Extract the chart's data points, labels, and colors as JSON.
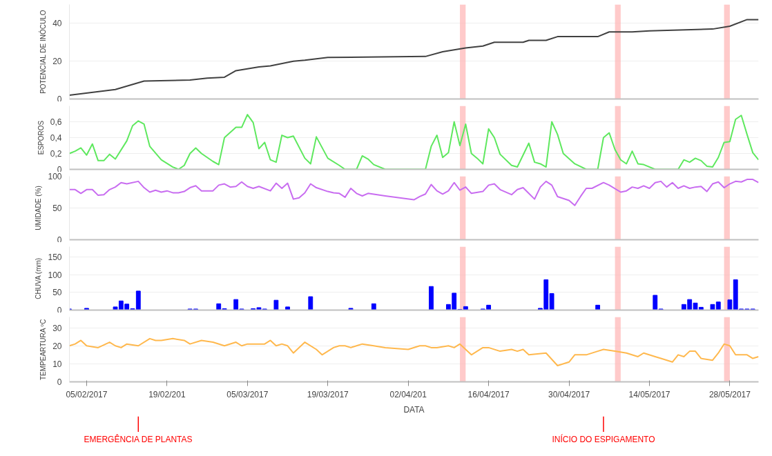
{
  "chart_data": [
    {
      "type": "line",
      "ylabel": "POTENCIAL DE INÓCULO",
      "grid": "y",
      "tick_labels": "y",
      "xlim": [
        "2017-02-02",
        "2017-06-02"
      ],
      "ylim": [
        0,
        50
      ],
      "yticks": [
        0,
        20,
        40
      ],
      "x": [
        "2017-02-02",
        "2017-02-10",
        "2017-02-15",
        "2017-02-23",
        "2017-02-26",
        "2017-03-01",
        "2017-03-03",
        "2017-03-07",
        "2017-03-09",
        "2017-03-13",
        "2017-03-15",
        "2017-03-19",
        "2017-04-05",
        "2017-04-08",
        "2017-04-12",
        "2017-04-15",
        "2017-04-17",
        "2017-04-22",
        "2017-04-23",
        "2017-04-26",
        "2017-04-28",
        "2017-05-05",
        "2017-05-07",
        "2017-05-11",
        "2017-05-14",
        "2017-05-25",
        "2017-05-28",
        "2017-05-31",
        "2017-06-02"
      ],
      "series": [
        {
          "color": "#404040",
          "values": [
            2,
            5,
            9.5,
            10,
            11,
            11.5,
            15,
            17,
            17.5,
            20,
            20.5,
            22,
            22.5,
            25,
            27,
            28,
            30,
            30,
            31,
            31,
            33,
            33,
            35.5,
            35.5,
            36,
            37,
            38.5,
            42,
            42
          ]
        }
      ],
      "bands": [
        {
          "axis": "x",
          "from": "2017-04-11",
          "to": "2017-04-12",
          "color": "#ffb3b3"
        },
        {
          "axis": "x",
          "from": "2017-05-08",
          "to": "2017-05-09",
          "color": "#ffb3b3"
        },
        {
          "axis": "x",
          "from": "2017-05-27",
          "to": "2017-05-28",
          "color": "#ffb3b3"
        }
      ]
    },
    {
      "type": "line",
      "ylabel": "ESPOROS",
      "grid": "y",
      "tick_labels": "y",
      "xlim": [
        "2017-02-02",
        "2017-06-02"
      ],
      "ylim": [
        0,
        0.8
      ],
      "yticks": [
        0,
        {
          "value": 0.2,
          "label": "0,2"
        },
        {
          "value": 0.4,
          "label": "0,4"
        },
        {
          "value": 0.6,
          "label": "0,6"
        }
      ],
      "x": [
        "2017-02-02",
        "2017-02-03",
        "2017-02-04",
        "2017-02-05",
        "2017-02-06",
        "2017-02-07",
        "2017-02-08",
        "2017-02-09",
        "2017-02-10",
        "2017-02-12",
        "2017-02-13",
        "2017-02-14",
        "2017-02-15",
        "2017-02-16",
        "2017-02-18",
        "2017-02-20",
        "2017-02-21",
        "2017-02-22",
        "2017-02-23",
        "2017-02-24",
        "2017-02-25",
        "2017-02-27",
        "2017-02-28",
        "2017-03-01",
        "2017-03-03",
        "2017-03-04",
        "2017-03-05",
        "2017-03-06",
        "2017-03-07",
        "2017-03-08",
        "2017-03-09",
        "2017-03-10",
        "2017-03-11",
        "2017-03-12",
        "2017-03-13",
        "2017-03-15",
        "2017-03-16",
        "2017-03-17",
        "2017-03-19",
        "2017-03-21",
        "2017-03-22",
        "2017-03-24",
        "2017-03-25",
        "2017-03-26",
        "2017-03-27",
        "2017-03-29",
        "2017-04-05",
        "2017-04-06",
        "2017-04-07",
        "2017-04-08",
        "2017-04-09",
        "2017-04-10",
        "2017-04-11",
        "2017-04-12",
        "2017-04-13",
        "2017-04-14",
        "2017-04-15",
        "2017-04-16",
        "2017-04-17",
        "2017-04-18",
        "2017-04-20",
        "2017-04-21",
        "2017-04-23",
        "2017-04-24",
        "2017-04-25",
        "2017-04-26",
        "2017-04-27",
        "2017-04-28",
        "2017-04-29",
        "2017-05-01",
        "2017-05-03",
        "2017-05-05",
        "2017-05-06",
        "2017-05-07",
        "2017-05-08",
        "2017-05-09",
        "2017-05-10",
        "2017-05-11",
        "2017-05-12",
        "2017-05-13",
        "2017-05-15",
        "2017-05-19",
        "2017-05-20",
        "2017-05-21",
        "2017-05-22",
        "2017-05-23",
        "2017-05-24",
        "2017-05-25",
        "2017-05-26",
        "2017-05-27",
        "2017-05-28",
        "2017-05-29",
        "2017-05-30",
        "2017-05-31",
        "2017-06-01",
        "2017-06-02"
      ],
      "series": [
        {
          "color": "#5ee85e",
          "values": [
            0.2,
            0.23,
            0.27,
            0.18,
            0.32,
            0.11,
            0.11,
            0.19,
            0.13,
            0.36,
            0.55,
            0.61,
            0.57,
            0.29,
            0.12,
            0.03,
            0,
            0.05,
            0.2,
            0.27,
            0.2,
            0.1,
            0.06,
            0.4,
            0.53,
            0.53,
            0.69,
            0.59,
            0.26,
            0.34,
            0.12,
            0.09,
            0.43,
            0.4,
            0.42,
            0.14,
            0.07,
            0.41,
            0.14,
            0.05,
            0,
            0,
            0.17,
            0.13,
            0.06,
            0,
            0,
            0.29,
            0.43,
            0.15,
            0.21,
            0.6,
            0.3,
            0.57,
            0.2,
            0.14,
            0.07,
            0.51,
            0.4,
            0.19,
            0.05,
            0.03,
            0.33,
            0.09,
            0.07,
            0.03,
            0.6,
            0.44,
            0.2,
            0.07,
            0,
            0,
            0.4,
            0.46,
            0.25,
            0.12,
            0.07,
            0.23,
            0.07,
            0.06,
            0,
            0,
            0.12,
            0.09,
            0.14,
            0.11,
            0.04,
            0.03,
            0.15,
            0.34,
            0.35,
            0.63,
            0.68,
            0.44,
            0.21,
            0.12
          ]
        }
      ],
      "bands": [
        {
          "axis": "x",
          "from": "2017-04-11",
          "to": "2017-04-12",
          "color": "#ffb3b3"
        },
        {
          "axis": "x",
          "from": "2017-05-08",
          "to": "2017-05-09",
          "color": "#ffb3b3"
        },
        {
          "axis": "x",
          "from": "2017-05-27",
          "to": "2017-05-28",
          "color": "#ffb3b3"
        }
      ]
    },
    {
      "type": "line",
      "ylabel": "UMIDADE (%)",
      "grid": "y",
      "tick_labels": "y",
      "xlim": [
        "2017-02-02",
        "2017-06-02"
      ],
      "ylim": [
        0,
        100
      ],
      "yticks": [
        0,
        50,
        100
      ],
      "x": [
        "2017-02-02",
        "2017-02-03",
        "2017-02-04",
        "2017-02-05",
        "2017-02-06",
        "2017-02-07",
        "2017-02-08",
        "2017-02-09",
        "2017-02-10",
        "2017-02-11",
        "2017-02-12",
        "2017-02-14",
        "2017-02-15",
        "2017-02-16",
        "2017-02-17",
        "2017-02-18",
        "2017-02-19",
        "2017-02-20",
        "2017-02-21",
        "2017-02-22",
        "2017-02-23",
        "2017-02-24",
        "2017-02-25",
        "2017-02-27",
        "2017-02-28",
        "2017-03-01",
        "2017-03-02",
        "2017-03-03",
        "2017-03-04",
        "2017-03-05",
        "2017-03-06",
        "2017-03-07",
        "2017-03-09",
        "2017-03-10",
        "2017-03-11",
        "2017-03-12",
        "2017-03-13",
        "2017-03-14",
        "2017-03-15",
        "2017-03-16",
        "2017-03-17",
        "2017-03-19",
        "2017-03-20",
        "2017-03-21",
        "2017-03-22",
        "2017-03-23",
        "2017-03-24",
        "2017-03-25",
        "2017-03-26",
        "2017-03-29",
        "2017-04-03",
        "2017-04-04",
        "2017-04-05",
        "2017-04-06",
        "2017-04-07",
        "2017-04-08",
        "2017-04-09",
        "2017-04-10",
        "2017-04-11",
        "2017-04-12",
        "2017-04-13",
        "2017-04-15",
        "2017-04-16",
        "2017-04-17",
        "2017-04-18",
        "2017-04-20",
        "2017-04-21",
        "2017-04-22",
        "2017-04-24",
        "2017-04-25",
        "2017-04-26",
        "2017-04-27",
        "2017-04-28",
        "2017-04-30",
        "2017-05-01",
        "2017-05-02",
        "2017-05-03",
        "2017-05-04",
        "2017-05-06",
        "2017-05-07",
        "2017-05-09",
        "2017-05-10",
        "2017-05-11",
        "2017-05-12",
        "2017-05-13",
        "2017-05-14",
        "2017-05-15",
        "2017-05-16",
        "2017-05-17",
        "2017-05-18",
        "2017-05-19",
        "2017-05-20",
        "2017-05-21",
        "2017-05-22",
        "2017-05-23",
        "2017-05-24",
        "2017-05-25",
        "2017-05-26",
        "2017-05-27",
        "2017-05-28",
        "2017-05-29",
        "2017-05-30",
        "2017-05-31",
        "2017-06-01",
        "2017-06-02"
      ],
      "series": [
        {
          "color": "#c86cf0",
          "values": [
            79,
            79,
            73,
            79,
            79,
            70,
            71,
            79,
            83,
            90,
            88,
            92,
            82,
            75,
            78,
            75,
            77,
            74,
            74,
            76,
            82,
            85,
            77,
            77,
            86,
            88,
            83,
            84,
            91,
            84,
            81,
            84,
            77,
            89,
            81,
            89,
            64,
            66,
            74,
            88,
            82,
            76,
            74,
            73,
            67,
            81,
            73,
            69,
            73,
            69,
            63,
            68,
            72,
            87,
            77,
            72,
            77,
            90,
            78,
            83,
            73,
            76,
            86,
            88,
            79,
            71,
            79,
            82,
            64,
            83,
            92,
            86,
            68,
            62,
            54,
            68,
            81,
            81,
            90,
            86,
            75,
            77,
            83,
            81,
            85,
            81,
            90,
            92,
            83,
            90,
            81,
            85,
            81,
            83,
            84,
            76,
            88,
            91,
            82,
            88,
            92,
            91,
            95,
            95,
            90
          ]
        }
      ],
      "bands": [
        {
          "axis": "x",
          "from": "2017-04-11",
          "to": "2017-04-12",
          "color": "#ffb3b3"
        },
        {
          "axis": "x",
          "from": "2017-05-08",
          "to": "2017-05-09",
          "color": "#ffb3b3"
        },
        {
          "axis": "x",
          "from": "2017-05-27",
          "to": "2017-05-28",
          "color": "#ffb3b3"
        }
      ]
    },
    {
      "type": "bar",
      "ylabel": "CHUVA (mm)",
      "grid": "y",
      "tick_labels": "y",
      "xlim": [
        "2017-02-02",
        "2017-06-02"
      ],
      "ylim": [
        0,
        180
      ],
      "yticks": [
        0,
        50,
        100,
        150
      ],
      "x": [
        "2017-02-02",
        "2017-02-05",
        "2017-02-10",
        "2017-02-11",
        "2017-02-12",
        "2017-02-13",
        "2017-02-14",
        "2017-02-23",
        "2017-02-24",
        "2017-02-28",
        "2017-03-01",
        "2017-03-03",
        "2017-03-04",
        "2017-03-06",
        "2017-03-07",
        "2017-03-08",
        "2017-03-10",
        "2017-03-12",
        "2017-03-16",
        "2017-03-23",
        "2017-03-27",
        "2017-04-06",
        "2017-04-09",
        "2017-04-10",
        "2017-04-11",
        "2017-04-12",
        "2017-04-15",
        "2017-04-16",
        "2017-04-25",
        "2017-04-26",
        "2017-04-27",
        "2017-05-05",
        "2017-05-15",
        "2017-05-16",
        "2017-05-20",
        "2017-05-21",
        "2017-05-22",
        "2017-05-23",
        "2017-05-25",
        "2017-05-26",
        "2017-05-28",
        "2017-05-29",
        "2017-05-30",
        "2017-05-31",
        "2017-06-01"
      ],
      "series": [
        {
          "color": "#0000ff",
          "values": [
            3,
            5,
            9,
            26,
            17,
            4,
            54,
            3,
            3,
            18,
            4,
            30,
            3,
            4,
            7,
            3,
            28,
            9,
            38,
            5,
            18,
            67,
            16,
            48,
            2,
            10,
            3,
            14,
            5,
            86,
            47,
            14,
            42,
            3,
            16,
            30,
            20,
            8,
            16,
            23,
            29,
            86,
            3,
            3,
            3
          ]
        }
      ],
      "bands": [
        {
          "axis": "x",
          "from": "2017-04-11",
          "to": "2017-04-12",
          "color": "#ffb3b3"
        },
        {
          "axis": "x",
          "from": "2017-05-08",
          "to": "2017-05-09",
          "color": "#ffb3b3"
        },
        {
          "axis": "x",
          "from": "2017-05-27",
          "to": "2017-05-28",
          "color": "#ffb3b3"
        }
      ]
    },
    {
      "type": "line",
      "ylabel": "TEMPEARTURA ºC",
      "xlabel": "DATA",
      "grid": "y",
      "xlim": [
        "2017-02-02",
        "2017-06-02"
      ],
      "ylim": [
        0,
        36
      ],
      "yticks": [
        0,
        10,
        20,
        30
      ],
      "xticks": [
        {
          "value": "2017-02-05",
          "label": "05/02/2017"
        },
        {
          "value": "2017-02-19",
          "label": "19/02/201"
        },
        {
          "value": "2017-03-05",
          "label": "05/03/2017"
        },
        {
          "value": "2017-03-19",
          "label": "19/03/2017"
        },
        {
          "value": "2017-04-02",
          "label": "02/04/201"
        },
        {
          "value": "2017-04-16",
          "label": "16/04/2017"
        },
        {
          "value": "2017-04-30",
          "label": "30/04/2017"
        },
        {
          "value": "2017-05-14",
          "label": "14/05/2017"
        },
        {
          "value": "2017-05-28",
          "label": "28/05/2017"
        }
      ],
      "x": [
        "2017-02-02",
        "2017-02-03",
        "2017-02-04",
        "2017-02-05",
        "2017-02-07",
        "2017-02-09",
        "2017-02-10",
        "2017-02-11",
        "2017-02-12",
        "2017-02-14",
        "2017-02-16",
        "2017-02-17",
        "2017-02-18",
        "2017-02-20",
        "2017-02-22",
        "2017-02-23",
        "2017-02-25",
        "2017-02-27",
        "2017-03-01",
        "2017-03-03",
        "2017-03-04",
        "2017-03-05",
        "2017-03-08",
        "2017-03-09",
        "2017-03-10",
        "2017-03-11",
        "2017-03-12",
        "2017-03-13",
        "2017-03-15",
        "2017-03-17",
        "2017-03-18",
        "2017-03-20",
        "2017-03-21",
        "2017-03-22",
        "2017-03-23",
        "2017-03-24",
        "2017-03-25",
        "2017-03-27",
        "2017-03-29",
        "2017-04-02",
        "2017-04-04",
        "2017-04-05",
        "2017-04-06",
        "2017-04-07",
        "2017-04-09",
        "2017-04-10",
        "2017-04-11",
        "2017-04-13",
        "2017-04-15",
        "2017-04-16",
        "2017-04-18",
        "2017-04-20",
        "2017-04-21",
        "2017-04-22",
        "2017-04-23",
        "2017-04-26",
        "2017-04-28",
        "2017-04-30",
        "2017-05-01",
        "2017-05-03",
        "2017-05-05",
        "2017-05-06",
        "2017-05-08",
        "2017-05-10",
        "2017-05-12",
        "2017-05-13",
        "2017-05-15",
        "2017-05-16",
        "2017-05-18",
        "2017-05-19",
        "2017-05-20",
        "2017-05-21",
        "2017-05-22",
        "2017-05-23",
        "2017-05-25",
        "2017-05-26",
        "2017-05-27",
        "2017-05-28",
        "2017-05-29",
        "2017-05-30",
        "2017-05-31",
        "2017-06-01",
        "2017-06-02"
      ],
      "series": [
        {
          "color": "#ffb84d",
          "values": [
            20,
            21,
            23,
            20,
            19,
            22,
            20,
            19,
            21,
            20,
            24,
            23,
            23,
            24,
            23,
            21,
            23,
            22,
            20,
            22,
            20,
            21,
            21,
            23,
            20,
            21,
            20,
            16,
            22,
            18,
            15,
            19,
            20,
            20,
            19,
            20,
            21,
            20,
            19,
            18,
            20,
            20,
            19,
            19,
            20,
            19,
            21,
            15,
            19,
            19,
            17,
            18,
            17,
            18,
            15,
            16,
            9,
            11,
            15,
            15,
            17,
            18,
            17,
            16,
            14,
            16,
            14,
            13,
            11,
            15,
            14,
            17,
            17,
            13,
            12,
            16,
            21,
            20,
            15,
            15,
            15,
            13,
            14
          ]
        }
      ],
      "bands": [
        {
          "axis": "x",
          "from": "2017-04-11",
          "to": "2017-04-12",
          "color": "#ffb3b3"
        },
        {
          "axis": "x",
          "from": "2017-05-08",
          "to": "2017-05-09",
          "color": "#ffb3b3"
        },
        {
          "axis": "x",
          "from": "2017-05-27",
          "to": "2017-05-28",
          "color": "#ffb3b3"
        }
      ],
      "annotations": [
        {
          "text": "EMERGÊNCIA DE PLANTAS",
          "x": "2017-02-14"
        },
        {
          "text": "INÍCIO DO ESPIGAMENTO",
          "x": "2017-05-06"
        }
      ]
    }
  ]
}
